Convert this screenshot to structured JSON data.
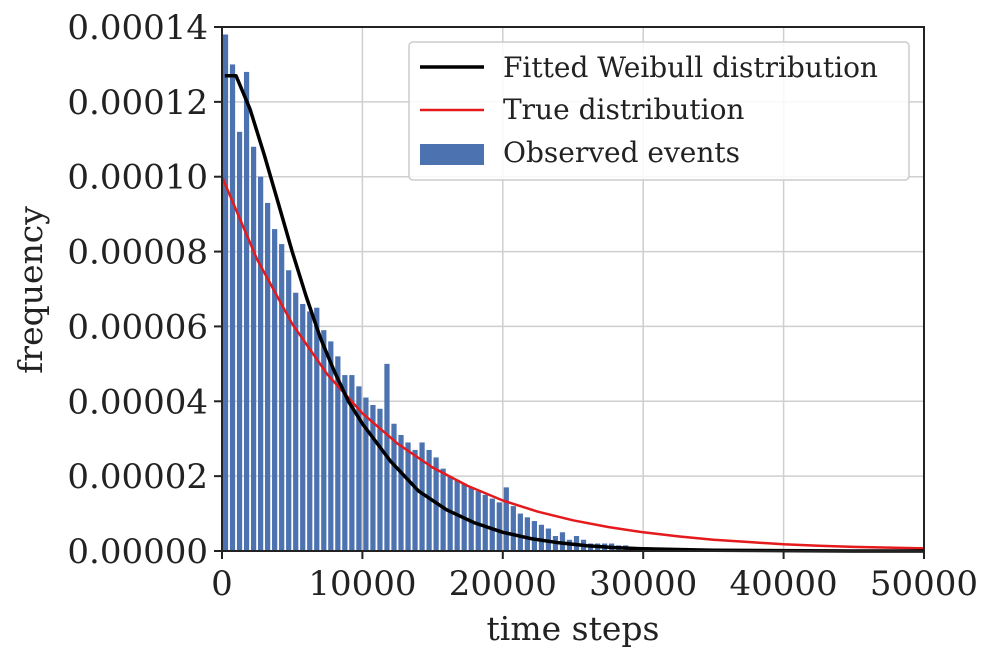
{
  "chart_data": {
    "type": "bar",
    "xlabel": "time steps",
    "ylabel": "frequency",
    "xlim": [
      0,
      50000
    ],
    "ylim": [
      0,
      0.00014
    ],
    "x_ticks": [
      "0",
      "10000",
      "20000",
      "30000",
      "40000",
      "50000"
    ],
    "x_tick_values": [
      0,
      10000,
      20000,
      30000,
      40000,
      50000
    ],
    "y_ticks": [
      "0.00000",
      "0.00002",
      "0.00004",
      "0.00006",
      "0.00008",
      "0.00010",
      "0.00012",
      "0.00014"
    ],
    "y_tick_values": [
      0,
      2e-05,
      4e-05,
      6e-05,
      8e-05,
      0.0001,
      0.00012,
      0.00014
    ],
    "grid": true,
    "legend_position": "top-right",
    "histogram": {
      "name": "Observed events",
      "color": "#4c72b0",
      "bin_start": 0,
      "bin_width": 500,
      "values": [
        0.000138,
        0.00013,
        0.000112,
        0.000128,
        0.000108,
        0.0001,
        9.3e-05,
        8.6e-05,
        8.2e-05,
        7.5e-05,
        6.9e-05,
        6.6e-05,
        6.4e-05,
        6.5e-05,
        5.9e-05,
        5.6e-05,
        5.2e-05,
        4.7e-05,
        4.7e-05,
        4.4e-05,
        4.1e-05,
        3.9e-05,
        3.8e-05,
        5e-05,
        3.4e-05,
        3.1e-05,
        2.9e-05,
        2.7e-05,
        2.9e-05,
        2.7e-05,
        2.5e-05,
        2.2e-05,
        2e-05,
        1.9e-05,
        1.8e-05,
        1.7e-05,
        1.6e-05,
        1.5e-05,
        1.4e-05,
        1.3e-05,
        1.7e-05,
        1.2e-05,
        1e-05,
        9e-06,
        8e-06,
        7e-06,
        6e-06,
        4e-06,
        5e-06,
        3e-06,
        4e-06,
        3e-06,
        2e-06,
        2e-06,
        2e-06,
        2e-06,
        1.5e-06,
        1.5e-06,
        1e-06,
        1e-06,
        1e-06,
        8e-07,
        8e-07,
        6e-07,
        6e-07,
        4e-07,
        4e-07,
        3e-07,
        3e-07,
        2e-07
      ]
    },
    "series": [
      {
        "name": "Fitted Weibull distribution",
        "color": "#000000",
        "x": [
          200,
          1000,
          2000,
          3000,
          4000,
          5000,
          6000,
          7000,
          8000,
          9000,
          10000,
          12000,
          14000,
          16000,
          18000,
          20000,
          22000,
          24000,
          26000,
          28000,
          30000,
          35000,
          40000,
          45000,
          50000
        ],
        "values": [
          0.000127,
          0.000127,
          0.000118,
          0.000106,
          9.3e-05,
          8e-05,
          6.8e-05,
          5.7e-05,
          4.8e-05,
          4e-05,
          3.4e-05,
          2.4e-05,
          1.6e-05,
          1.1e-05,
          7.5e-06,
          5e-06,
          3.3e-06,
          2.2e-06,
          1.4e-06,
          9e-07,
          6e-07,
          2e-07,
          1e-07,
          0,
          0
        ]
      },
      {
        "name": "True distribution",
        "color": "#e41a1c",
        "x": [
          0,
          2500,
          5000,
          7500,
          10000,
          12500,
          15000,
          17500,
          20000,
          22500,
          25000,
          27500,
          30000,
          32500,
          35000,
          37500,
          40000,
          42500,
          45000,
          47500,
          50000
        ],
        "values": [
          0.0001,
          7.79e-05,
          6.07e-05,
          4.72e-05,
          3.68e-05,
          2.87e-05,
          2.23e-05,
          1.74e-05,
          1.35e-05,
          1.05e-05,
          8.2e-06,
          6.4e-06,
          5e-06,
          3.9e-06,
          3e-06,
          2.4e-06,
          1.8e-06,
          1.4e-06,
          1.1e-06,
          9e-07,
          7e-07
        ]
      }
    ],
    "legend": [
      "Fitted Weibull distribution",
      "True distribution",
      "Observed events"
    ]
  }
}
